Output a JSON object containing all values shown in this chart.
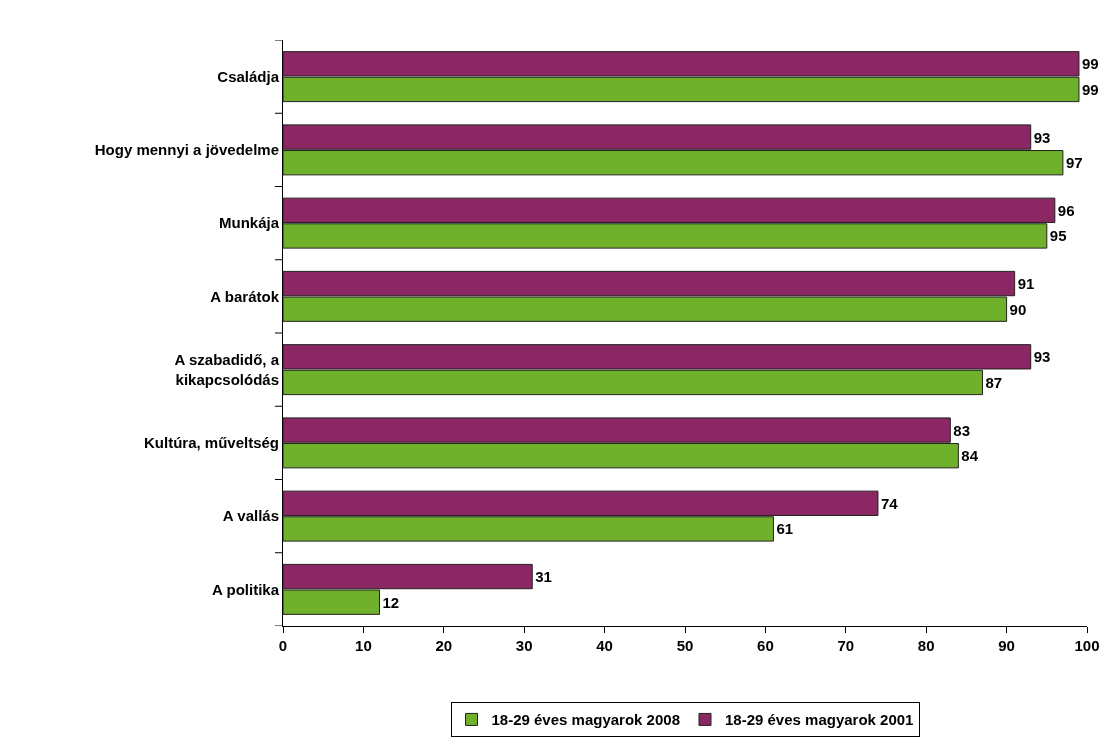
{
  "chart_data": {
    "type": "bar",
    "orientation": "horizontal",
    "categories": [
      "Családja",
      "Hogy mennyi a jövedelme",
      "Munkája",
      "A barátok",
      "A szabadidő, a\nkikapcsolódás",
      "Kultúra, műveltség",
      "A vallás",
      "A politika"
    ],
    "series": [
      {
        "name": "18-29 éves magyarok 2008",
        "color": "#6fb12a",
        "values": [
          99,
          97,
          95,
          90,
          87,
          84,
          61,
          12
        ]
      },
      {
        "name": "18-29 éves magyarok 2001",
        "color": "#8b2763",
        "values": [
          99,
          93,
          96,
          91,
          93,
          83,
          74,
          31
        ]
      }
    ],
    "xlim": [
      0,
      100
    ],
    "xticks": [
      0,
      10,
      20,
      30,
      40,
      50,
      60,
      70,
      80,
      90,
      100
    ],
    "grid": false,
    "legend": "bottom",
    "data_labels": true
  }
}
